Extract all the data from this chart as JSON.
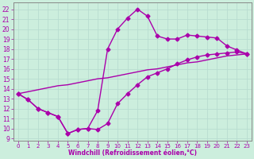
{
  "xlabel": "Windchill (Refroidissement éolien,°C)",
  "xlim": [
    -0.5,
    23.5
  ],
  "ylim": [
    8.8,
    22.7
  ],
  "background_color": "#cceedd",
  "grid_color": "#aaddcc",
  "line_color": "#aa00aa",
  "line1_x": [
    0,
    1,
    2,
    3,
    4,
    5,
    6,
    7,
    8,
    9,
    10,
    11,
    12,
    13,
    14,
    15,
    16,
    17,
    18,
    19,
    20,
    21,
    22,
    23
  ],
  "line1_y": [
    13.5,
    12.9,
    12.0,
    11.6,
    11.2,
    9.5,
    9.9,
    10.0,
    11.8,
    18.0,
    20.0,
    21.1,
    22.0,
    21.3,
    19.3,
    19.0,
    19.0,
    19.4,
    19.3,
    19.2,
    19.1,
    18.3,
    17.9,
    17.5
  ],
  "line2_x": [
    0,
    1,
    2,
    3,
    4,
    5,
    6,
    7,
    8,
    9,
    10,
    11,
    12,
    13,
    14,
    15,
    16,
    17,
    18,
    19,
    20,
    21,
    22,
    23
  ],
  "line2_y": [
    13.5,
    12.9,
    12.0,
    11.6,
    11.2,
    9.5,
    9.9,
    10.0,
    9.9,
    10.5,
    12.5,
    13.5,
    14.4,
    15.2,
    15.6,
    16.0,
    16.5,
    16.9,
    17.2,
    17.4,
    17.5,
    17.6,
    17.7,
    17.5
  ],
  "line3_x": [
    0,
    1,
    2,
    3,
    4,
    5,
    6,
    7,
    8,
    9,
    10,
    11,
    12,
    13,
    14,
    15,
    16,
    17,
    18,
    19,
    20,
    21,
    22,
    23
  ],
  "line3_y": [
    13.5,
    13.7,
    13.9,
    14.1,
    14.3,
    14.4,
    14.6,
    14.8,
    15.0,
    15.1,
    15.3,
    15.5,
    15.7,
    15.9,
    16.0,
    16.2,
    16.4,
    16.6,
    16.7,
    16.9,
    17.1,
    17.3,
    17.4,
    17.5
  ],
  "xticks": [
    0,
    1,
    2,
    3,
    4,
    5,
    6,
    7,
    8,
    9,
    10,
    11,
    12,
    13,
    14,
    15,
    16,
    17,
    18,
    19,
    20,
    21,
    22,
    23
  ],
  "yticks": [
    9,
    10,
    11,
    12,
    13,
    14,
    15,
    16,
    17,
    18,
    19,
    20,
    21,
    22
  ]
}
